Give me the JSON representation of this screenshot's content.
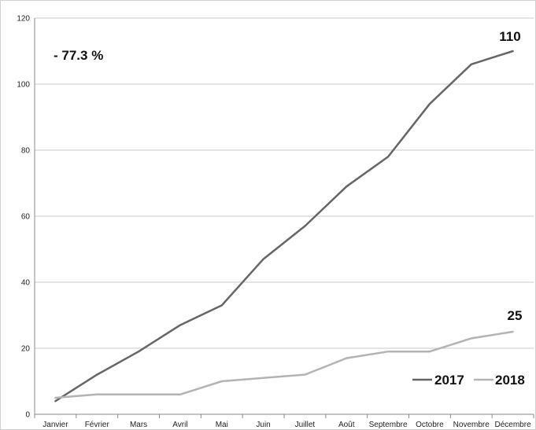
{
  "chart_data": {
    "type": "line",
    "categories": [
      "Janvier",
      "Février",
      "Mars",
      "Avril",
      "Mai",
      "Juin",
      "Juillet",
      "Août",
      "Septembre",
      "Octobre",
      "Novembre",
      "Décembre"
    ],
    "series": [
      {
        "name": "2017",
        "color": "#666666",
        "values": [
          4,
          12,
          19,
          27,
          33,
          47,
          57,
          69,
          78,
          94,
          106,
          110
        ]
      },
      {
        "name": "2018",
        "color": "#b3b3b3",
        "values": [
          5,
          6,
          6,
          6,
          10,
          11,
          12,
          17,
          19,
          19,
          23,
          25
        ]
      }
    ],
    "ylim": [
      0,
      120
    ],
    "yticks": [
      0,
      20,
      40,
      60,
      80,
      100,
      120
    ],
    "grid": true,
    "legend_position": "bottom-right",
    "annotations": {
      "change": "- 77.3 %",
      "end_2017": "110",
      "end_2018": "25"
    }
  }
}
